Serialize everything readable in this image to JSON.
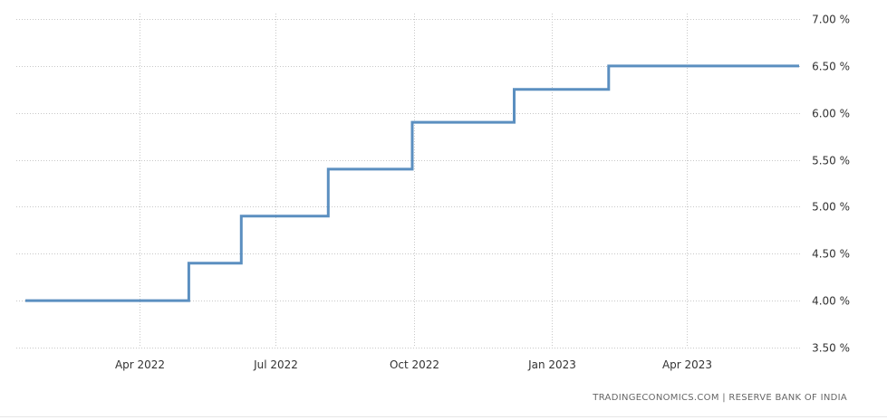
{
  "chart_data": {
    "type": "line",
    "step": true,
    "series": [
      {
        "color": "#5b8fc0",
        "points": [
          {
            "x": "2022-01-15",
            "y": 4.0
          },
          {
            "x": "2022-05-04",
            "y": 4.4
          },
          {
            "x": "2022-06-08",
            "y": 4.9
          },
          {
            "x": "2022-08-05",
            "y": 5.4
          },
          {
            "x": "2022-09-30",
            "y": 5.9
          },
          {
            "x": "2022-12-07",
            "y": 6.25
          },
          {
            "x": "2023-02-08",
            "y": 6.5
          },
          {
            "x": "2023-06-15",
            "y": 6.5
          }
        ]
      }
    ],
    "x_ticks": [
      {
        "date": "2022-04-01",
        "label": "Apr 2022"
      },
      {
        "date": "2022-07-01",
        "label": "Jul 2022"
      },
      {
        "date": "2022-10-01",
        "label": "Oct 2022"
      },
      {
        "date": "2023-01-01",
        "label": "Jan 2023"
      },
      {
        "date": "2023-04-01",
        "label": "Apr 2023"
      }
    ],
    "y_ticks": [
      {
        "value": 3.5,
        "label": "3.50 %"
      },
      {
        "value": 4.0,
        "label": "4.00 %"
      },
      {
        "value": 4.5,
        "label": "4.50 %"
      },
      {
        "value": 5.0,
        "label": "5.00 %"
      },
      {
        "value": 5.5,
        "label": "5.50 %"
      },
      {
        "value": 6.0,
        "label": "6.00 %"
      },
      {
        "value": 6.5,
        "label": "6.50 %"
      },
      {
        "value": 7.0,
        "label": "7.00 %"
      }
    ],
    "ylim": [
      3.5,
      7.0
    ],
    "xlim": [
      "2022-01-15",
      "2023-06-15"
    ],
    "grid": true,
    "y_axis_side": "right"
  },
  "source_text": "TRADINGECONOMICS.COM | RESERVE BANK OF INDIA"
}
